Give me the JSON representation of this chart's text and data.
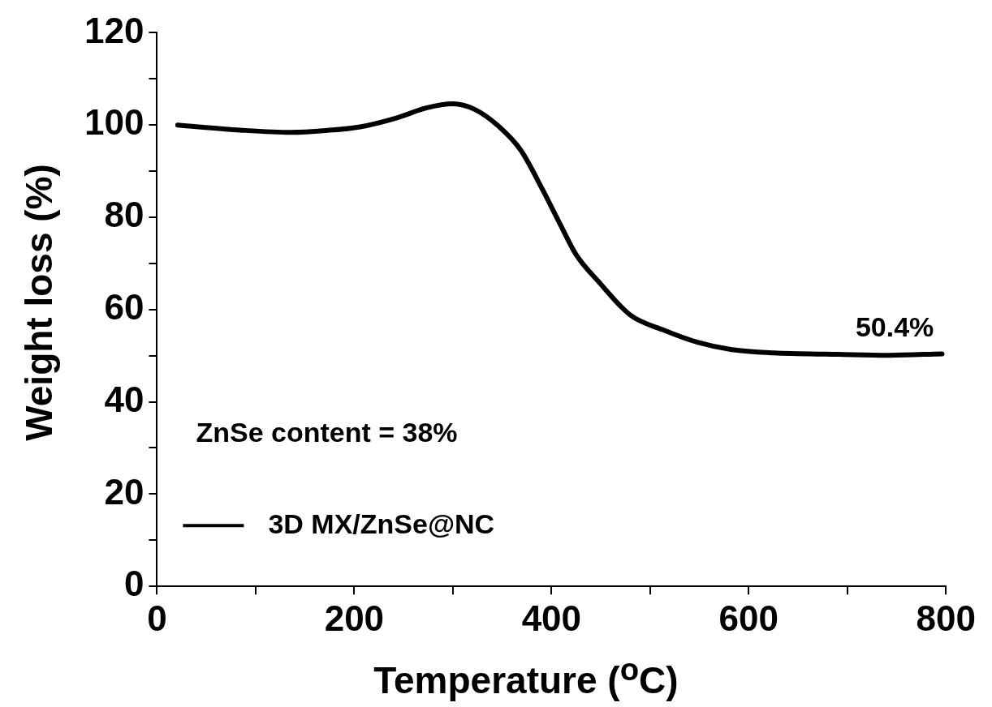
{
  "chart_data": {
    "type": "line",
    "xlabel": "Temperature ($^{o}$C)",
    "ylabel": "Weight loss (%)",
    "x": [
      21,
      84,
      136,
      171,
      206,
      244,
      273,
      300,
      322,
      346,
      369,
      390,
      409,
      425,
      448,
      480,
      513,
      548,
      583,
      625,
      690,
      742,
      796
    ],
    "series": [
      {
        "name": "3D MX/ZnSe@NC",
        "color": "#000000",
        "values": [
          100.0,
          98.9,
          98.4,
          98.8,
          99.6,
          101.6,
          103.7,
          104.6,
          103.4,
          99.8,
          94.5,
          86.4,
          78.4,
          71.9,
          66.0,
          58.8,
          55.6,
          52.9,
          51.3,
          50.6,
          50.3,
          50.1,
          50.4
        ]
      }
    ],
    "xlim": [
      0,
      800
    ],
    "ylim": [
      0,
      120
    ],
    "xticks": [
      0,
      {
        "value": 100,
        "label": null
      },
      200,
      {
        "value": 300,
        "label": null
      },
      400,
      {
        "value": 500,
        "label": null
      },
      600,
      {
        "value": 700,
        "label": null
      },
      800
    ],
    "yticks": [
      0,
      {
        "value": 10,
        "label": null
      },
      20,
      {
        "value": 30,
        "label": null
      },
      40,
      {
        "value": 50,
        "label": null
      },
      60,
      {
        "value": 70,
        "label": null
      },
      80,
      {
        "value": 90,
        "label": null
      },
      100,
      {
        "value": 110,
        "label": null
      },
      120
    ],
    "annotations": [
      "50.4%",
      "ZnSe content = 38%"
    ],
    "legend": "bottom left",
    "grid": false,
    "marker": "none",
    "line_style": "solid"
  }
}
